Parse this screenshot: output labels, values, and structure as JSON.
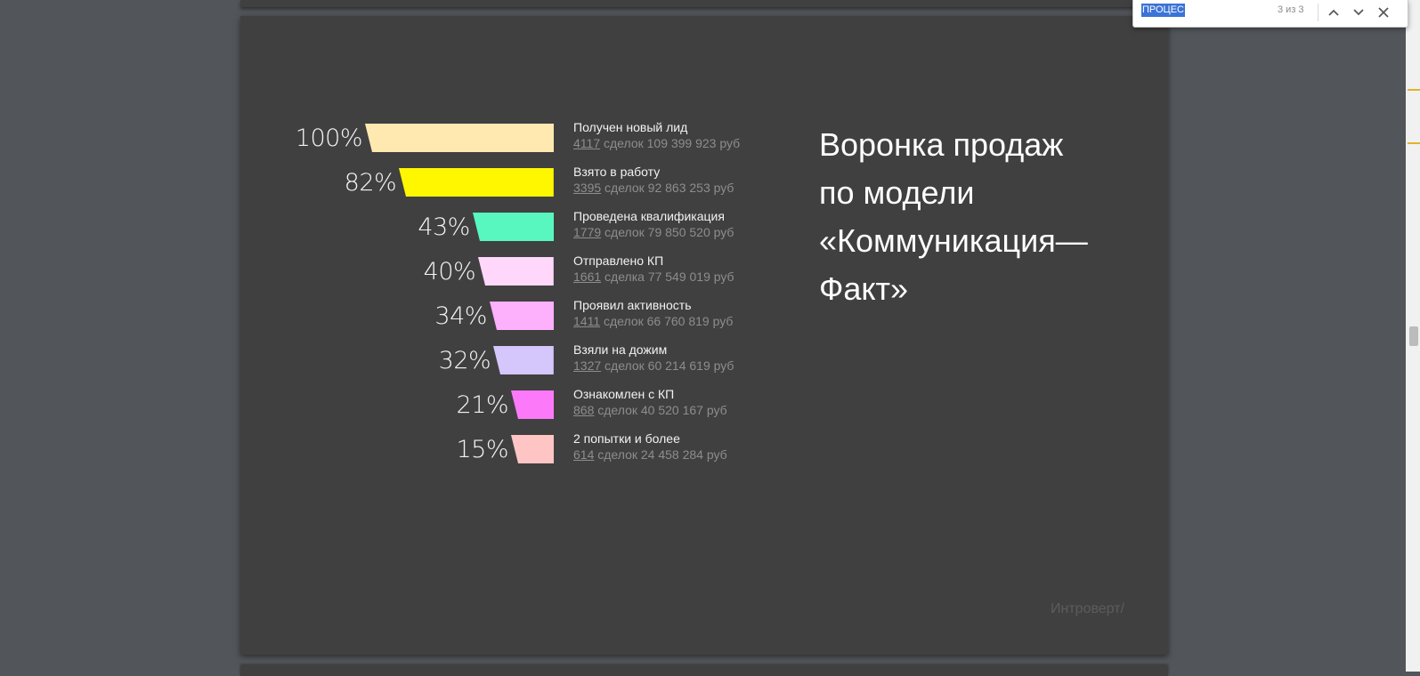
{
  "find_bar": {
    "query": "ПРОЦЕС",
    "match_count": "3 из 3",
    "prev_icon": "chevron-up-icon",
    "next_icon": "chevron-down-icon",
    "close_icon": "close-icon"
  },
  "slide": {
    "title_lines": [
      "Воронка продаж",
      "по модели",
      "«Коммуникация—",
      "Факт»"
    ],
    "brand": "Интроверт/"
  },
  "chart_data": {
    "type": "funnel",
    "stages": [
      {
        "percent": 100,
        "percent_label": "100%",
        "name": "Получен новый лид",
        "count": "4117",
        "unit": "сделок",
        "amount": "109 399 923 руб",
        "color": "#ffe9b0"
      },
      {
        "percent": 82,
        "percent_label": "82%",
        "name": "Взято в работу",
        "count": "3395",
        "unit": "сделок",
        "amount": "92 863 253 руб",
        "color": "#fff700"
      },
      {
        "percent": 43,
        "percent_label": "43%",
        "name": "Проведена квалификация",
        "count": "1779",
        "unit": "сделок",
        "amount": "79 850 520 руб",
        "color": "#58f7c0"
      },
      {
        "percent": 40,
        "percent_label": "40%",
        "name": "Отправлено КП",
        "count": "1661",
        "unit": "сделка",
        "amount": "77 549 019 руб",
        "color": "#ffd7fb"
      },
      {
        "percent": 34,
        "percent_label": "34%",
        "name": "Проявил активность",
        "count": "1411",
        "unit": "сделок",
        "amount": "66 760 819 руб",
        "color": "#fdb0fc"
      },
      {
        "percent": 32,
        "percent_label": "32%",
        "name": "Взяли на дожим",
        "count": "1327",
        "unit": "сделок",
        "amount": "60 214 619 руб",
        "color": "#d5c6fb"
      },
      {
        "percent": 21,
        "percent_label": "21%",
        "name": "Ознакомлен с КП",
        "count": "868",
        "unit": "сделок",
        "amount": "40 520 167 руб",
        "color": "#fc7af9"
      },
      {
        "percent": 15,
        "percent_label": "15%",
        "name": "2 попытки и более",
        "count": "614",
        "unit": "сделок",
        "amount": "24 458 284 руб",
        "color": "#ffc5c5"
      }
    ]
  }
}
